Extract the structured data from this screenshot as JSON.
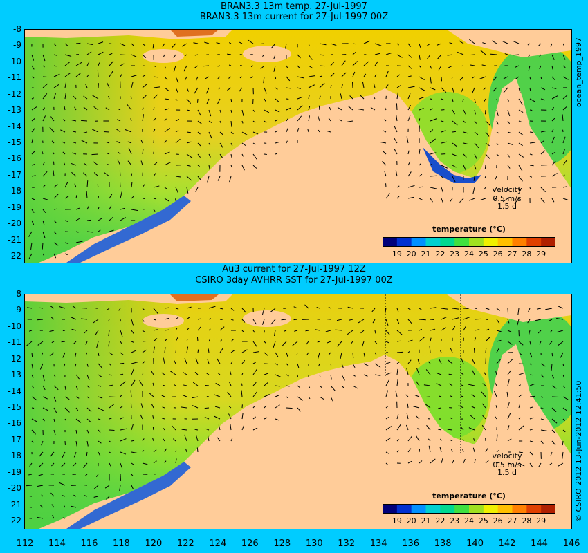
{
  "top_panel": {
    "title_line1": "BRAN3.3 13m temp. 27-Jul-1997",
    "title_line2": "BRAN3.3 13m current for 27-Jul-1997 00Z",
    "side_label": "ocean_temp_1997",
    "legend": {
      "label": "velocity",
      "scale_speed": "0.5 m/s",
      "scale_time": "1.5 d"
    },
    "colorbar_title": "temperature (°C)"
  },
  "bottom_panel": {
    "title_line1": "Au3 current for 27-Jul-1997 12Z",
    "title_line2": "CSIRO 3day AVHRR SST for 27-Jul-1997 00Z",
    "side_label": "© CSIRO 2012  13-Jun-2012 12:41:50",
    "legend": {
      "label": "velocity",
      "scale_speed": "0.5 m/s",
      "scale_time": "1.5 d"
    },
    "colorbar_title": "temperature (°C)"
  },
  "colorbar_ticks": [
    "19",
    "20",
    "21",
    "22",
    "23",
    "24",
    "25",
    "26",
    "27",
    "28",
    "29"
  ],
  "colorbar_colors": [
    "#00007a",
    "#0030d0",
    "#0090ff",
    "#00d0d0",
    "#00d890",
    "#40e040",
    "#a0e020",
    "#f0f000",
    "#ffc000",
    "#ff8000",
    "#e04000",
    "#b02000"
  ],
  "y_ticks": [
    "-8",
    "-9",
    "-10",
    "-11",
    "-12",
    "-13",
    "-14",
    "-15",
    "-16",
    "-17",
    "-18",
    "-19",
    "-20",
    "-21",
    "-22"
  ],
  "x_ticks": [
    "112",
    "114",
    "116",
    "118",
    "120",
    "122",
    "124",
    "126",
    "128",
    "130",
    "132",
    "134",
    "136",
    "138",
    "140",
    "142",
    "144",
    "146"
  ],
  "colors": {
    "background": "#00ccff",
    "land": "#ffcc99",
    "warm_water": "#f0c800",
    "cool_water": "#30d040"
  }
}
